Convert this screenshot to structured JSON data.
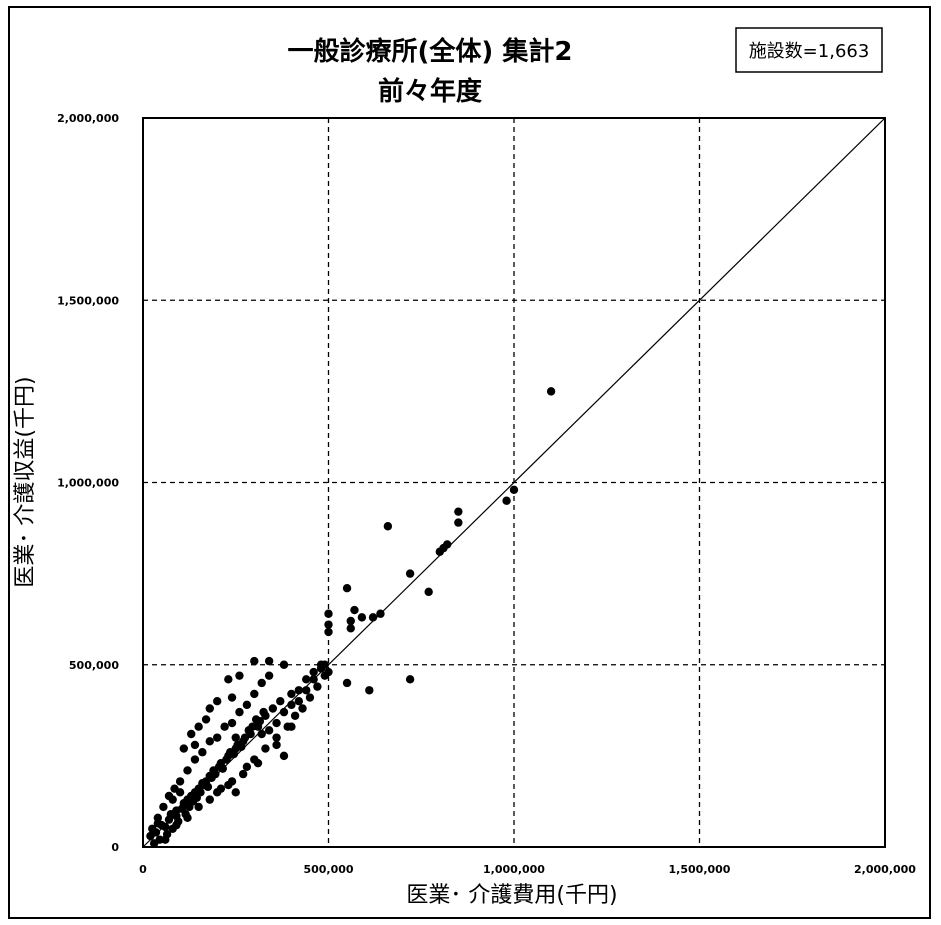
{
  "chart_data": {
    "type": "scatter",
    "title": "一般診療所(全体) 集計2",
    "subtitle": "前々年度",
    "badge": "施設数=1,663",
    "xlabel": "医業･ 介護費用(千円)",
    "ylabel": "医業･ 介護収益(千円)",
    "xlim": [
      0,
      2000000
    ],
    "ylim": [
      0,
      2000000
    ],
    "x_ticks": [
      0,
      500000,
      1000000,
      1500000,
      2000000
    ],
    "y_ticks": [
      0,
      500000,
      1000000,
      1500000,
      2000000
    ],
    "x_tick_labels": [
      "0",
      "500,000",
      "1,000,000",
      "1,500,000",
      "2,000,000"
    ],
    "y_tick_labels": [
      "0",
      "500,000",
      "1,000,000",
      "1,500,000",
      "2,000,000"
    ],
    "grid": true,
    "reference_line": {
      "from": [
        0,
        0
      ],
      "to": [
        2000000,
        2000000
      ]
    },
    "series": [
      {
        "points": [
          [
            20000,
            30000
          ],
          [
            35000,
            40000
          ],
          [
            50000,
            60000
          ],
          [
            60000,
            55000
          ],
          [
            75000,
            90000
          ],
          [
            90000,
            100000
          ],
          [
            110000,
            120000
          ],
          [
            130000,
            140000
          ],
          [
            150000,
            160000
          ],
          [
            170000,
            180000
          ],
          [
            190000,
            210000
          ],
          [
            210000,
            230000
          ],
          [
            230000,
            250000
          ],
          [
            250000,
            270000
          ],
          [
            270000,
            290000
          ],
          [
            290000,
            310000
          ],
          [
            310000,
            330000
          ],
          [
            330000,
            360000
          ],
          [
            350000,
            380000
          ],
          [
            370000,
            400000
          ],
          [
            80000,
            130000
          ],
          [
            100000,
            180000
          ],
          [
            120000,
            210000
          ],
          [
            140000,
            240000
          ],
          [
            160000,
            260000
          ],
          [
            180000,
            290000
          ],
          [
            200000,
            300000
          ],
          [
            220000,
            330000
          ],
          [
            240000,
            340000
          ],
          [
            260000,
            370000
          ],
          [
            280000,
            390000
          ],
          [
            300000,
            420000
          ],
          [
            320000,
            450000
          ],
          [
            340000,
            470000
          ],
          [
            60000,
            20000
          ],
          [
            90000,
            60000
          ],
          [
            120000,
            80000
          ],
          [
            150000,
            110000
          ],
          [
            180000,
            130000
          ],
          [
            210000,
            160000
          ],
          [
            240000,
            180000
          ],
          [
            270000,
            200000
          ],
          [
            300000,
            240000
          ],
          [
            330000,
            270000
          ],
          [
            360000,
            300000
          ],
          [
            390000,
            330000
          ],
          [
            410000,
            360000
          ],
          [
            430000,
            380000
          ],
          [
            450000,
            410000
          ],
          [
            470000,
            440000
          ],
          [
            490000,
            470000
          ],
          [
            500000,
            480000
          ],
          [
            490000,
            500000
          ],
          [
            480000,
            490000
          ],
          [
            460000,
            460000
          ],
          [
            440000,
            430000
          ],
          [
            420000,
            400000
          ],
          [
            400000,
            390000
          ],
          [
            380000,
            370000
          ],
          [
            360000,
            340000
          ],
          [
            300000,
            510000
          ],
          [
            340000,
            510000
          ],
          [
            380000,
            500000
          ],
          [
            260000,
            470000
          ],
          [
            230000,
            460000
          ],
          [
            240000,
            410000
          ],
          [
            200000,
            400000
          ],
          [
            180000,
            380000
          ],
          [
            170000,
            350000
          ],
          [
            150000,
            330000
          ],
          [
            130000,
            310000
          ],
          [
            140000,
            280000
          ],
          [
            110000,
            270000
          ],
          [
            250000,
            300000
          ],
          [
            320000,
            310000
          ],
          [
            360000,
            280000
          ],
          [
            400000,
            330000
          ],
          [
            380000,
            250000
          ],
          [
            280000,
            220000
          ],
          [
            230000,
            170000
          ],
          [
            200000,
            150000
          ],
          [
            250000,
            150000
          ],
          [
            310000,
            230000
          ],
          [
            340000,
            320000
          ],
          [
            400000,
            420000
          ],
          [
            420000,
            430000
          ],
          [
            440000,
            460000
          ],
          [
            460000,
            480000
          ],
          [
            480000,
            500000
          ],
          [
            40000,
            80000
          ],
          [
            55000,
            110000
          ],
          [
            70000,
            140000
          ],
          [
            85000,
            160000
          ],
          [
            100000,
            150000
          ],
          [
            45000,
            20000
          ],
          [
            65000,
            35000
          ],
          [
            80000,
            50000
          ],
          [
            95000,
            70000
          ],
          [
            115000,
            90000
          ],
          [
            125000,
            110000
          ],
          [
            135000,
            125000
          ],
          [
            145000,
            135000
          ],
          [
            155000,
            150000
          ],
          [
            165000,
            170000
          ],
          [
            175000,
            165000
          ],
          [
            185000,
            190000
          ],
          [
            195000,
            200000
          ],
          [
            205000,
            220000
          ],
          [
            215000,
            215000
          ],
          [
            225000,
            240000
          ],
          [
            235000,
            260000
          ],
          [
            245000,
            255000
          ],
          [
            255000,
            280000
          ],
          [
            265000,
            275000
          ],
          [
            275000,
            300000
          ],
          [
            285000,
            320000
          ],
          [
            295000,
            330000
          ],
          [
            305000,
            350000
          ],
          [
            315000,
            345000
          ],
          [
            325000,
            370000
          ],
          [
            30000,
            10000
          ],
          [
            25000,
            50000
          ],
          [
            40000,
            65000
          ],
          [
            70000,
            75000
          ],
          [
            90000,
            85000
          ],
          [
            105000,
            105000
          ],
          [
            120000,
            130000
          ],
          [
            140000,
            150000
          ],
          [
            160000,
            175000
          ],
          [
            180000,
            195000
          ],
          [
            500000,
            640000
          ],
          [
            500000,
            610000
          ],
          [
            500000,
            590000
          ],
          [
            560000,
            620000
          ],
          [
            570000,
            650000
          ],
          [
            590000,
            630000
          ],
          [
            620000,
            630000
          ],
          [
            640000,
            640000
          ],
          [
            560000,
            600000
          ],
          [
            550000,
            710000
          ],
          [
            660000,
            880000
          ],
          [
            720000,
            750000
          ],
          [
            770000,
            700000
          ],
          [
            720000,
            460000
          ],
          [
            610000,
            430000
          ],
          [
            550000,
            450000
          ],
          [
            800000,
            810000
          ],
          [
            810000,
            820000
          ],
          [
            820000,
            830000
          ],
          [
            850000,
            890000
          ],
          [
            850000,
            920000
          ],
          [
            980000,
            950000
          ],
          [
            1000000,
            980000
          ],
          [
            1100000,
            1250000
          ]
        ]
      }
    ]
  }
}
